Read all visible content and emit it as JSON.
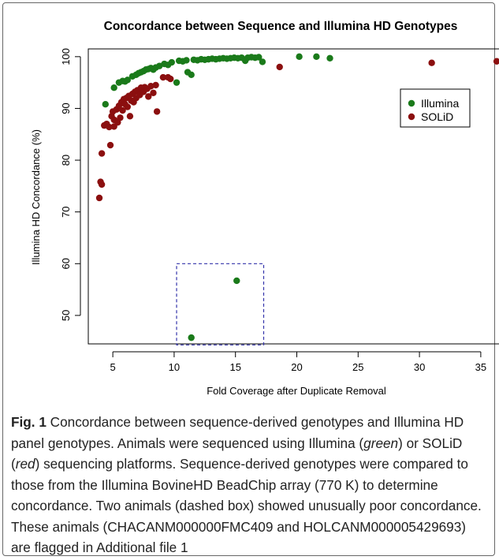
{
  "chart_data": {
    "type": "scatter",
    "title": "Concordance between Sequence and Illumina HD Genotypes",
    "xlabel": "Fold Coverage after Duplicate Removal",
    "ylabel": "Illumina HD Concordance (%)",
    "xlim": [
      3,
      37
    ],
    "ylim": [
      44.5,
      101.5
    ],
    "xticks": [
      5,
      10,
      15,
      20,
      25,
      30,
      35
    ],
    "yticks": [
      50,
      60,
      70,
      80,
      90,
      100
    ],
    "grid": false,
    "legend_position": "top-right",
    "series": [
      {
        "name": "Illumina",
        "color": "#1a7a1a",
        "points": [
          [
            4.4,
            90.8
          ],
          [
            5.1,
            94.0
          ],
          [
            5.5,
            95.0
          ],
          [
            5.8,
            95.3
          ],
          [
            6.0,
            95.2
          ],
          [
            6.2,
            95.5
          ],
          [
            6.6,
            96.2
          ],
          [
            6.9,
            96.5
          ],
          [
            7.1,
            96.8
          ],
          [
            7.3,
            97.0
          ],
          [
            7.5,
            97.2
          ],
          [
            7.7,
            97.5
          ],
          [
            7.9,
            97.6
          ],
          [
            8.1,
            97.8
          ],
          [
            8.3,
            97.5
          ],
          [
            8.5,
            97.9
          ],
          [
            8.8,
            98.2
          ],
          [
            9.2,
            98.6
          ],
          [
            9.5,
            98.4
          ],
          [
            9.8,
            98.9
          ],
          [
            10.2,
            95.0
          ],
          [
            10.4,
            99.2
          ],
          [
            10.7,
            99.1
          ],
          [
            11.0,
            99.3
          ],
          [
            11.1,
            97.0
          ],
          [
            11.4,
            96.5
          ],
          [
            11.6,
            99.4
          ],
          [
            11.9,
            99.3
          ],
          [
            12.2,
            99.5
          ],
          [
            12.5,
            99.4
          ],
          [
            12.8,
            99.5
          ],
          [
            13.1,
            99.6
          ],
          [
            13.4,
            99.5
          ],
          [
            13.7,
            99.6
          ],
          [
            14.0,
            99.7
          ],
          [
            14.3,
            99.6
          ],
          [
            14.6,
            99.7
          ],
          [
            14.9,
            99.8
          ],
          [
            15.2,
            99.7
          ],
          [
            15.5,
            99.8
          ],
          [
            15.8,
            99.2
          ],
          [
            16.0,
            99.8
          ],
          [
            16.3,
            99.9
          ],
          [
            16.6,
            99.8
          ],
          [
            16.9,
            99.9
          ],
          [
            17.2,
            99.0
          ],
          [
            20.2,
            100.0
          ],
          [
            21.6,
            100.0
          ],
          [
            22.7,
            99.7
          ],
          [
            15.1,
            56.7
          ],
          [
            11.4,
            45.7
          ]
        ]
      },
      {
        "name": "SOLiD",
        "color": "#8b0f0f",
        "points": [
          [
            3.9,
            72.7
          ],
          [
            4.0,
            75.8
          ],
          [
            4.1,
            75.3
          ],
          [
            4.1,
            81.3
          ],
          [
            4.3,
            86.7
          ],
          [
            4.5,
            87.0
          ],
          [
            4.7,
            86.4
          ],
          [
            4.8,
            82.9
          ],
          [
            4.9,
            88.5
          ],
          [
            5.0,
            89.4
          ],
          [
            5.1,
            86.5
          ],
          [
            5.1,
            87.8
          ],
          [
            5.3,
            89.8
          ],
          [
            5.4,
            87.3
          ],
          [
            5.5,
            90.5
          ],
          [
            5.6,
            88.2
          ],
          [
            5.7,
            91.2
          ],
          [
            5.8,
            89.6
          ],
          [
            5.9,
            91.8
          ],
          [
            6.0,
            90.8
          ],
          [
            6.1,
            92.0
          ],
          [
            6.2,
            90.3
          ],
          [
            6.3,
            92.4
          ],
          [
            6.4,
            88.5
          ],
          [
            6.5,
            91.5
          ],
          [
            6.6,
            92.8
          ],
          [
            6.7,
            91.2
          ],
          [
            6.8,
            93.2
          ],
          [
            6.9,
            92.0
          ],
          [
            7.0,
            93.5
          ],
          [
            7.2,
            92.6
          ],
          [
            7.3,
            94.0
          ],
          [
            7.5,
            93.2
          ],
          [
            7.6,
            94.1
          ],
          [
            7.8,
            93.8
          ],
          [
            7.9,
            92.3
          ],
          [
            8.1,
            94.3
          ],
          [
            8.3,
            93.0
          ],
          [
            8.5,
            94.5
          ],
          [
            8.6,
            89.4
          ],
          [
            9.1,
            96.0
          ],
          [
            9.5,
            96.0
          ],
          [
            9.7,
            95.7
          ],
          [
            18.6,
            98.0
          ],
          [
            31.0,
            98.8
          ],
          [
            36.3,
            99.1
          ]
        ]
      }
    ],
    "annotation": {
      "type": "dashed-box",
      "x_range": [
        10.2,
        17.3
      ],
      "y_range": [
        44.3,
        60.0
      ]
    }
  },
  "caption": {
    "fig_label": "Fig. 1",
    "text_1": " Concordance between sequence-derived genotypes and Illumina HD panel genotypes. Animals were sequenced using Illumina (",
    "green_word": "green",
    "text_2": ") or SOLiD (",
    "red_word": "red",
    "text_3": ") sequencing platforms. Sequence-derived genotypes were compared to those from the Illumina BovineHD BeadChip array (770 K) to determine concordance. Two animals (dashed box) showed unusually poor concordance. These animals (CHACANM000000FMC409 and HOLCANM000005429693) are flagged in Additional file 1"
  }
}
